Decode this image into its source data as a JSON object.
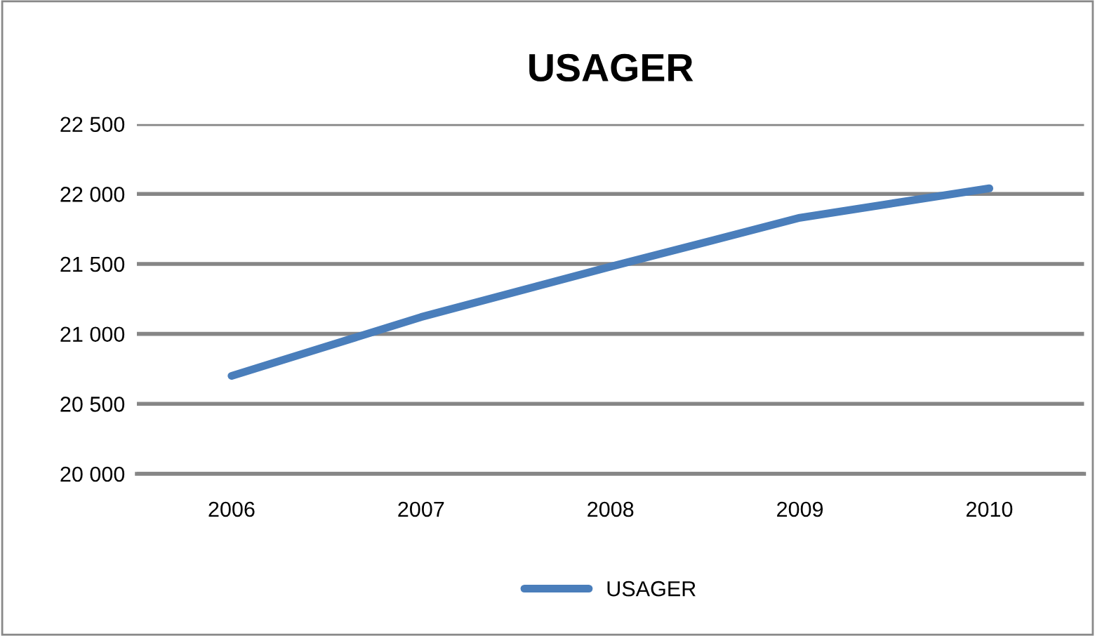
{
  "chart_data": {
    "type": "line",
    "title": "USAGER",
    "categories": [
      "2006",
      "2007",
      "2008",
      "2009",
      "2010"
    ],
    "series": [
      {
        "name": "USAGER",
        "color": "#4a7ebb",
        "values": [
          20700,
          21120,
          21480,
          21830,
          22040
        ]
      }
    ],
    "ylim": [
      20000,
      22500
    ],
    "yticks": [
      {
        "value": 20000,
        "label": "20 000"
      },
      {
        "value": 20500,
        "label": "20 500"
      },
      {
        "value": 21000,
        "label": "21 000"
      },
      {
        "value": 21500,
        "label": "21 500"
      },
      {
        "value": 22000,
        "label": "22 000"
      },
      {
        "value": 22500,
        "label": "22 500"
      }
    ],
    "grid": "y",
    "legend": "bottom",
    "marker": "none",
    "line_style": "solid"
  }
}
